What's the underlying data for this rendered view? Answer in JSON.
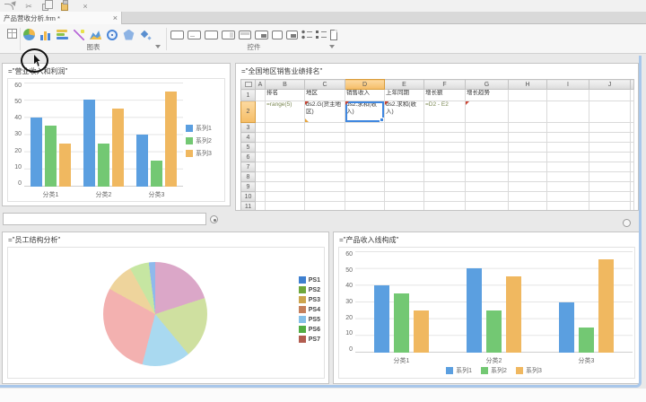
{
  "mini_toolbar": {
    "icons": [
      "redo-arrow",
      "cut",
      "copy",
      "paste",
      "delete"
    ],
    "cut_glyph": "✂",
    "delete_glyph": "×"
  },
  "tab_bar": {
    "active_tab": "产品营收分析.frm *",
    "close_label": "×"
  },
  "ribbon": {
    "table_tool": "table",
    "chart_group": {
      "label": "图表",
      "icons": [
        "pie-chart",
        "bar-chart",
        "stacked-chart",
        "line-chart",
        "area-chart",
        "gauge-chart",
        "radar-chart",
        "combo-chart"
      ]
    },
    "controls_group": {
      "label": "控件",
      "icons": [
        "button",
        "text-field",
        "text-area",
        "combo-box",
        "window-panel",
        "tab-panel",
        "checkbox",
        "nested-panel",
        "radio-group",
        "checkbox-group",
        "report-block"
      ]
    }
  },
  "panels": {
    "chart1": {
      "title": "=\"营业收入和利润\""
    },
    "grid": {
      "title": "=\"全国地区销售业绩排名\""
    },
    "pie": {
      "title": "=\"员工结构分析\""
    },
    "chart2": {
      "title": "=\"产品收入线构成\""
    }
  },
  "form_input": {
    "value": "",
    "placeholder": ""
  },
  "spreadsheet": {
    "column_headers": [
      "A",
      "B",
      "C",
      "D",
      "E",
      "F",
      "G",
      "H",
      "I",
      "J"
    ],
    "visible_rows": 12,
    "selected_cell": "D2",
    "selected_column": "D",
    "selected_row": 2,
    "cells": {
      "B1": "排名",
      "C1": "地区",
      "D1": "销售收入",
      "E1": "上年同期",
      "F1": "增长额",
      "G1": "增长趋势",
      "B2": "=range(5)",
      "C2": "ds2.G(货主地区)",
      "D2": "ds2.求和(收入)",
      "E2": "ds2.求和(收入)",
      "F2": "=D2 - E2"
    },
    "formula_cells": [
      "B2",
      "F2"
    ],
    "marker_cells": [
      "C2",
      "D2",
      "E2",
      "G2"
    ],
    "marker2_cells": [
      "C2"
    ]
  },
  "colors": {
    "selection_blue": "#3f87e0",
    "header_highlight": "#f5bd66",
    "body_border_blue": "#a9c7ea",
    "series_blue": "#5b9fe0",
    "series_green": "#73c873",
    "series_orange": "#f0b860"
  },
  "chart_data": [
    {
      "type": "bar",
      "title": "营业收入和利润",
      "categories": [
        "分类1",
        "分类2",
        "分类3"
      ],
      "series": [
        {
          "name": "系列1",
          "color": "#5b9fe0",
          "values": [
            40,
            50,
            30
          ]
        },
        {
          "name": "系列2",
          "color": "#73c873",
          "values": [
            35,
            25,
            15
          ]
        },
        {
          "name": "系列3",
          "color": "#f0b860",
          "values": [
            25,
            45,
            55
          ]
        }
      ],
      "ylim": [
        0,
        60
      ],
      "yticks": [
        0,
        10,
        20,
        30,
        40,
        50,
        60
      ],
      "legend_position": "right",
      "grid": true
    },
    {
      "type": "pie",
      "title": "员工结构分析",
      "slices": [
        {
          "label": "PS1",
          "value": 2,
          "color": "#8fb9ec",
          "legend_color": "#3f80d0"
        },
        {
          "label": "PS2",
          "value": 19,
          "color": "#cfe0a0",
          "legend_color": "#6fa83c"
        },
        {
          "label": "PS3",
          "value": 9,
          "color": "#eed49c",
          "legend_color": "#cda54e"
        },
        {
          "label": "PS4",
          "value": 20,
          "color": "#dba7c8",
          "legend_color": "#c57f5b"
        },
        {
          "label": "PS5",
          "value": 15,
          "color": "#a9d9f0",
          "legend_color": "#85c0e8"
        },
        {
          "label": "PS6",
          "value": 6,
          "color": "#c6e6a2",
          "legend_color": "#52ad42"
        },
        {
          "label": "PS7",
          "value": 29,
          "color": "#f3b1b0",
          "legend_color": "#b25c4f"
        }
      ],
      "draw_order": [
        "PS4",
        "PS2",
        "PS5",
        "PS7",
        "PS3",
        "PS6",
        "PS1"
      ],
      "legend_position": "right"
    },
    {
      "type": "bar",
      "title": "产品收入线构成",
      "categories": [
        "分类1",
        "分类2",
        "分类3"
      ],
      "series": [
        {
          "name": "系列1",
          "color": "#5b9fe0",
          "values": [
            40,
            50,
            30
          ]
        },
        {
          "name": "系列2",
          "color": "#73c873",
          "values": [
            35,
            25,
            15
          ]
        },
        {
          "name": "系列3",
          "color": "#f0b860",
          "values": [
            25,
            45,
            55
          ]
        }
      ],
      "ylim": [
        0,
        60
      ],
      "yticks": [
        0,
        10,
        20,
        30,
        40,
        50,
        60
      ],
      "legend_position": "bottom",
      "grid": true
    }
  ]
}
